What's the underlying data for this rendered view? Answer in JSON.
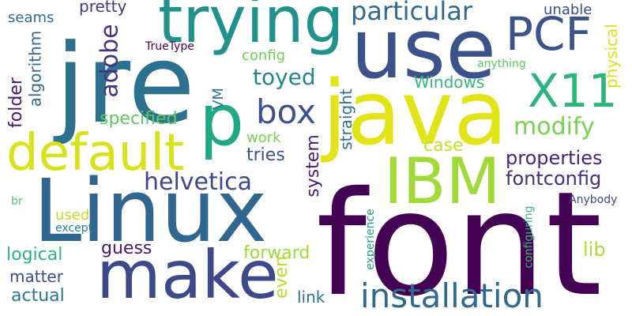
{
  "word_cloud": {
    "words": [
      {
        "text": "font",
        "color": "#440154"
      },
      {
        "text": "Linux",
        "color": "#31668e"
      },
      {
        "text": "jre",
        "color": "#2c728e"
      },
      {
        "text": "java",
        "color": "#e2e418"
      },
      {
        "text": "use",
        "color": "#3b528b"
      },
      {
        "text": "trying",
        "color": "#21918c"
      },
      {
        "text": "IBM",
        "color": "#a0da39"
      },
      {
        "text": "make",
        "color": "#3e4989"
      },
      {
        "text": "default",
        "color": "#d8e219"
      },
      {
        "text": "PCF",
        "color": "#3b528b"
      },
      {
        "text": "X11",
        "color": "#2fb47c"
      },
      {
        "text": "p",
        "color": "#22a884"
      },
      {
        "text": "installation",
        "color": "#31688e"
      },
      {
        "text": "box",
        "color": "#3b528b"
      },
      {
        "text": "particular",
        "color": "#31688e"
      },
      {
        "text": "helvetica",
        "color": "#3e4989"
      },
      {
        "text": "adobe",
        "color": "#46327e"
      },
      {
        "text": "modify",
        "color": "#7ad151"
      },
      {
        "text": "toyed",
        "color": "#26828e"
      },
      {
        "text": "fontconfig",
        "color": "#472d7b"
      },
      {
        "text": "properties",
        "color": "#482576"
      },
      {
        "text": "specified",
        "color": "#5ec962"
      },
      {
        "text": "tries",
        "color": "#3b528b"
      },
      {
        "text": "folder",
        "color": "#48186a"
      },
      {
        "text": "system",
        "color": "#482173"
      },
      {
        "text": "logical",
        "color": "#2fb47c"
      },
      {
        "text": "guess",
        "color": "#48186a"
      },
      {
        "text": "forward",
        "color": "#a0da39"
      },
      {
        "text": "lib",
        "color": "#a8db34"
      },
      {
        "text": "case",
        "color": "#bddf26"
      },
      {
        "text": "Windows",
        "color": "#35b779"
      },
      {
        "text": "physical",
        "color": "#d8e219"
      },
      {
        "text": "algorithm",
        "color": "#31688e"
      },
      {
        "text": "matter",
        "color": "#3e4989"
      },
      {
        "text": "actual",
        "color": "#2a788e"
      },
      {
        "text": "link",
        "color": "#2c728e"
      },
      {
        "text": "even",
        "color": "#b5de2b"
      },
      {
        "text": "straight",
        "color": "#2d708e"
      },
      {
        "text": "work",
        "color": "#7ad151"
      },
      {
        "text": "config",
        "color": "#6ece58"
      },
      {
        "text": "pretty",
        "color": "#453781"
      },
      {
        "text": "seams",
        "color": "#31688e"
      },
      {
        "text": "unable",
        "color": "#3e4989"
      },
      {
        "text": "VM",
        "color": "#2c728e"
      },
      {
        "text": "used",
        "color": "#bddf26"
      },
      {
        "text": "TrueType",
        "color": "#440154"
      },
      {
        "text": "anything",
        "color": "#5ec962"
      },
      {
        "text": "Anybody",
        "color": "#3e4989"
      },
      {
        "text": "except",
        "color": "#26828e"
      },
      {
        "text": "experience",
        "color": "#1f9e89"
      },
      {
        "text": "configuring",
        "color": "#35b779"
      },
      {
        "text": "br",
        "color": "#54c568"
      }
    ]
  }
}
